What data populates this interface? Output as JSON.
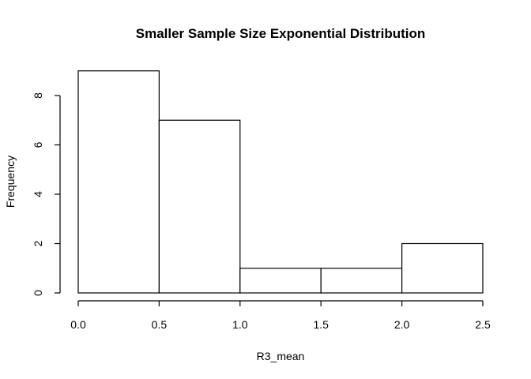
{
  "chart_data": {
    "type": "bar",
    "title": "Smaller Sample Size Exponential Distribution",
    "xlabel": "R3_mean",
    "ylabel": "Frequency",
    "bins": [
      {
        "start": 0.0,
        "end": 0.5,
        "count": 9
      },
      {
        "start": 0.5,
        "end": 1.0,
        "count": 7
      },
      {
        "start": 1.0,
        "end": 1.5,
        "count": 1
      },
      {
        "start": 1.5,
        "end": 2.0,
        "count": 1
      },
      {
        "start": 2.0,
        "end": 2.5,
        "count": 2
      }
    ],
    "xlim": [
      0.0,
      2.5
    ],
    "ylim": [
      0,
      9
    ],
    "xticks": [
      0.0,
      0.5,
      1.0,
      1.5,
      2.0,
      2.5
    ],
    "xtick_labels": [
      "0.0",
      "0.5",
      "1.0",
      "1.5",
      "2.0",
      "2.5"
    ],
    "yticks": [
      0,
      2,
      4,
      6,
      8
    ],
    "ytick_labels": [
      "0",
      "2",
      "4",
      "6",
      "8"
    ],
    "grid": false,
    "legend": "none",
    "colors": {
      "bar_fill": "#ffffff",
      "bar_stroke": "#000000",
      "text": "#000000"
    }
  }
}
